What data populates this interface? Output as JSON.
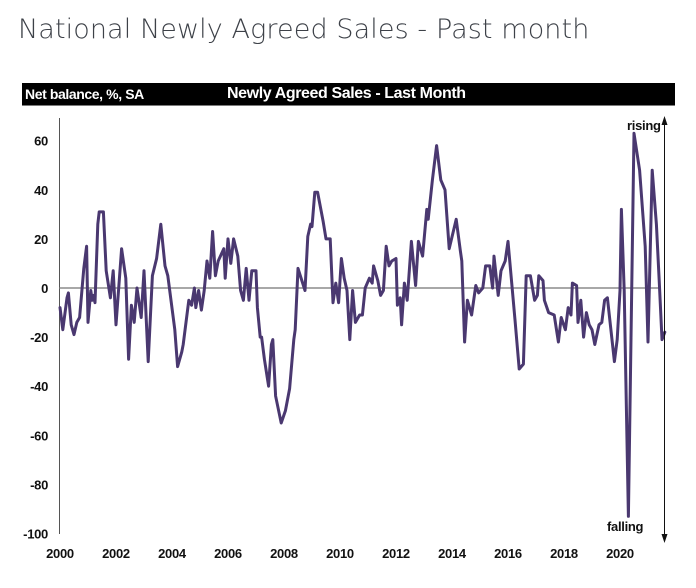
{
  "page": {
    "title": "National Newly Agreed Sales - Past month"
  },
  "chart_header": {
    "left_label": "Net balance, %, SA",
    "center_label": "Newly Agreed Sales - Last Month"
  },
  "annotations": {
    "top": "rising",
    "bottom": "falling"
  },
  "colors": {
    "line": "#4a3870",
    "zero_line": "#8c8c8c",
    "band": "#000000"
  },
  "chart_data": {
    "type": "line",
    "title": "Newly Agreed Sales - Last Month",
    "ylabel": "Net balance, %, SA",
    "xlabel": "",
    "ylim": [
      -100,
      70
    ],
    "xlim": [
      2000,
      2021.6
    ],
    "yticks": [
      60,
      40,
      20,
      0,
      -20,
      -40,
      -60,
      -80,
      -100
    ],
    "xticks": [
      2000,
      2002,
      2004,
      2006,
      2008,
      2010,
      2012,
      2014,
      2016,
      2018,
      2020
    ],
    "grid": false,
    "zero_line": true,
    "series": [
      {
        "name": "Newly Agreed Sales",
        "points": [
          [
            2000.0,
            -8
          ],
          [
            2000.1,
            -17
          ],
          [
            2000.25,
            -4
          ],
          [
            2000.3,
            -2
          ],
          [
            2000.4,
            -15
          ],
          [
            2000.5,
            -19
          ],
          [
            2000.6,
            -14
          ],
          [
            2000.7,
            -12
          ],
          [
            2000.85,
            8
          ],
          [
            2000.95,
            17
          ],
          [
            2001.0,
            -14
          ],
          [
            2001.1,
            -1
          ],
          [
            2001.15,
            -5
          ],
          [
            2001.2,
            -3
          ],
          [
            2001.25,
            -6
          ],
          [
            2001.35,
            26
          ],
          [
            2001.4,
            31
          ],
          [
            2001.55,
            31
          ],
          [
            2001.65,
            7
          ],
          [
            2001.8,
            -4
          ],
          [
            2001.9,
            7
          ],
          [
            2002.0,
            -15
          ],
          [
            2002.2,
            16
          ],
          [
            2002.35,
            4
          ],
          [
            2002.45,
            -29
          ],
          [
            2002.55,
            -7
          ],
          [
            2002.65,
            -14
          ],
          [
            2002.75,
            0
          ],
          [
            2002.9,
            -12
          ],
          [
            2003.0,
            7
          ],
          [
            2003.15,
            -30
          ],
          [
            2003.3,
            5
          ],
          [
            2003.45,
            12
          ],
          [
            2003.6,
            26
          ],
          [
            2003.75,
            9
          ],
          [
            2003.85,
            5
          ],
          [
            2004.1,
            -17
          ],
          [
            2004.2,
            -32
          ],
          [
            2004.35,
            -26
          ],
          [
            2004.4,
            -23
          ],
          [
            2004.6,
            -5
          ],
          [
            2004.7,
            -7
          ],
          [
            2004.8,
            0
          ],
          [
            2004.85,
            -8
          ],
          [
            2004.95,
            -1
          ],
          [
            2005.05,
            -9
          ],
          [
            2005.15,
            -1
          ],
          [
            2005.25,
            11
          ],
          [
            2005.35,
            4
          ],
          [
            2005.45,
            23
          ],
          [
            2005.55,
            5
          ],
          [
            2005.65,
            11
          ],
          [
            2005.85,
            16
          ],
          [
            2005.9,
            4
          ],
          [
            2006.0,
            20
          ],
          [
            2006.1,
            10
          ],
          [
            2006.2,
            20
          ],
          [
            2006.35,
            13
          ],
          [
            2006.45,
            -1
          ],
          [
            2006.55,
            -5
          ],
          [
            2006.65,
            8
          ],
          [
            2006.75,
            -5
          ],
          [
            2006.85,
            7
          ],
          [
            2007.0,
            7
          ],
          [
            2007.05,
            -8
          ],
          [
            2007.15,
            -20
          ],
          [
            2007.2,
            -20
          ],
          [
            2007.3,
            -29
          ],
          [
            2007.45,
            -40
          ],
          [
            2007.55,
            -23
          ],
          [
            2007.6,
            -21
          ],
          [
            2007.7,
            -44
          ],
          [
            2007.9,
            -55
          ],
          [
            2008.05,
            -50
          ],
          [
            2008.2,
            -41
          ],
          [
            2008.35,
            -21
          ],
          [
            2008.4,
            -17
          ],
          [
            2008.5,
            8
          ],
          [
            2008.75,
            -1
          ],
          [
            2008.85,
            21
          ],
          [
            2008.95,
            26
          ],
          [
            2009.0,
            25
          ],
          [
            2009.1,
            39
          ],
          [
            2009.2,
            39
          ],
          [
            2009.4,
            27
          ],
          [
            2009.5,
            20
          ],
          [
            2009.65,
            20
          ],
          [
            2009.75,
            -6
          ],
          [
            2009.85,
            2
          ],
          [
            2009.95,
            -6
          ],
          [
            2010.05,
            12
          ],
          [
            2010.15,
            4
          ],
          [
            2010.25,
            -1
          ],
          [
            2010.35,
            -21
          ],
          [
            2010.45,
            -1
          ],
          [
            2010.55,
            -14
          ],
          [
            2010.7,
            -11
          ],
          [
            2010.8,
            -11
          ],
          [
            2010.9,
            0
          ],
          [
            2011.05,
            4
          ],
          [
            2011.15,
            2
          ],
          [
            2011.2,
            9
          ],
          [
            2011.35,
            3
          ],
          [
            2011.45,
            -3
          ],
          [
            2011.55,
            -1
          ],
          [
            2011.65,
            17
          ],
          [
            2011.75,
            9
          ],
          [
            2011.85,
            11
          ],
          [
            2012.0,
            12
          ],
          [
            2012.05,
            -7
          ],
          [
            2012.15,
            -4
          ],
          [
            2012.2,
            -15
          ],
          [
            2012.3,
            2
          ],
          [
            2012.4,
            -5
          ],
          [
            2012.55,
            19
          ],
          [
            2012.7,
            1
          ],
          [
            2012.8,
            19
          ],
          [
            2012.95,
            13
          ],
          [
            2013.1,
            32
          ],
          [
            2013.15,
            28
          ],
          [
            2013.3,
            44
          ],
          [
            2013.45,
            58
          ],
          [
            2013.6,
            44
          ],
          [
            2013.75,
            40
          ],
          [
            2013.9,
            16
          ],
          [
            2014.15,
            28
          ],
          [
            2014.3,
            15
          ],
          [
            2014.35,
            11
          ],
          [
            2014.45,
            -22
          ],
          [
            2014.55,
            -5
          ],
          [
            2014.7,
            -11
          ],
          [
            2014.85,
            1
          ],
          [
            2014.95,
            -2
          ],
          [
            2015.1,
            0
          ],
          [
            2015.2,
            9
          ],
          [
            2015.35,
            9
          ],
          [
            2015.45,
            0
          ],
          [
            2015.5,
            13
          ],
          [
            2015.65,
            -3
          ],
          [
            2015.75,
            7
          ],
          [
            2015.9,
            11
          ],
          [
            2016.0,
            19
          ],
          [
            2016.25,
            -13
          ],
          [
            2016.4,
            -33
          ],
          [
            2016.55,
            -31
          ],
          [
            2016.65,
            5
          ],
          [
            2016.8,
            5
          ],
          [
            2016.95,
            -5
          ],
          [
            2017.05,
            -3
          ],
          [
            2017.1,
            5
          ],
          [
            2017.25,
            3
          ],
          [
            2017.3,
            -5
          ],
          [
            2017.45,
            -10
          ],
          [
            2017.65,
            -11
          ],
          [
            2017.8,
            -22
          ],
          [
            2017.9,
            -12
          ],
          [
            2018.05,
            -17
          ],
          [
            2018.15,
            -8
          ],
          [
            2018.25,
            -11
          ],
          [
            2018.3,
            2
          ],
          [
            2018.45,
            1
          ],
          [
            2018.5,
            -14
          ],
          [
            2018.6,
            -5
          ],
          [
            2018.7,
            -20
          ],
          [
            2018.8,
            -10
          ],
          [
            2018.9,
            -15
          ],
          [
            2019.0,
            -17
          ],
          [
            2019.1,
            -23
          ],
          [
            2019.25,
            -15
          ],
          [
            2019.35,
            -14
          ],
          [
            2019.45,
            -5
          ],
          [
            2019.55,
            -4
          ],
          [
            2019.8,
            -30
          ],
          [
            2019.9,
            -21
          ],
          [
            2020.0,
            -1
          ],
          [
            2020.05,
            32
          ],
          [
            2020.15,
            -1
          ],
          [
            2020.3,
            -93
          ],
          [
            2020.5,
            63
          ],
          [
            2020.7,
            48
          ],
          [
            2020.9,
            17
          ],
          [
            2021.0,
            -22
          ],
          [
            2021.15,
            48
          ],
          [
            2021.3,
            26
          ],
          [
            2021.4,
            3
          ],
          [
            2021.5,
            -21
          ],
          [
            2021.6,
            -18
          ]
        ]
      }
    ]
  }
}
